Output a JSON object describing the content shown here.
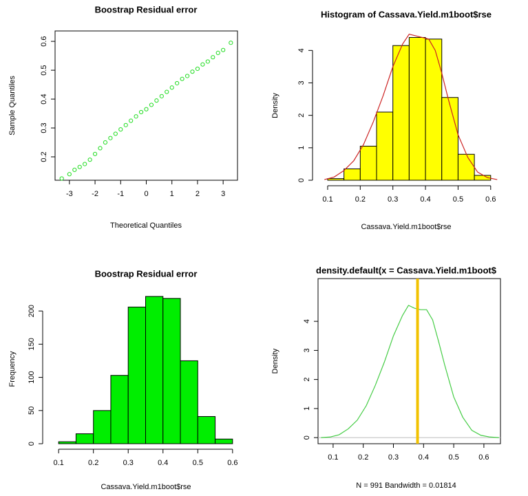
{
  "chart_data": [
    {
      "type": "scatter",
      "title": "Boostrap Residual error",
      "x_label": "Theoretical Quantiles",
      "y_label": "Sample Quantiles",
      "color": "#22dd22",
      "box": true,
      "x": [
        -3.3,
        -3.0,
        -2.8,
        -2.6,
        -2.4,
        -2.2,
        -2.0,
        -1.8,
        -1.6,
        -1.4,
        -1.2,
        -1.0,
        -0.8,
        -0.6,
        -0.4,
        -0.2,
        0,
        0.2,
        0.4,
        0.6,
        0.8,
        1.0,
        1.2,
        1.4,
        1.6,
        1.8,
        2.0,
        2.2,
        2.4,
        2.6,
        2.8,
        3.0,
        3.3
      ],
      "values": [
        0.125,
        0.14,
        0.155,
        0.165,
        0.175,
        0.19,
        0.21,
        0.23,
        0.25,
        0.265,
        0.28,
        0.295,
        0.31,
        0.325,
        0.34,
        0.355,
        0.365,
        0.38,
        0.395,
        0.41,
        0.425,
        0.44,
        0.455,
        0.47,
        0.48,
        0.495,
        0.505,
        0.52,
        0.53,
        0.545,
        0.56,
        0.57,
        0.595
      ],
      "xlim": [
        -3.56,
        3.56
      ],
      "ylim": [
        0.119,
        0.636
      ],
      "xticks": [
        -3,
        -2,
        -1,
        0,
        1,
        2,
        3
      ],
      "yticks": [
        0.2,
        0.3,
        0.4,
        0.5,
        0.6
      ]
    },
    {
      "type": "histogram",
      "title": "Histogram of Cassava.Yield.m1boot$rse",
      "x_label": "Cassava.Yield.m1boot$rse",
      "y_label": "Density",
      "color": "#ffff00",
      "box": false,
      "bins": [
        0.1,
        0.15,
        0.2,
        0.25,
        0.3,
        0.35,
        0.4,
        0.45,
        0.5,
        0.55,
        0.6
      ],
      "values": [
        0.05,
        0.35,
        1.05,
        2.1,
        4.15,
        4.4,
        4.35,
        2.55,
        0.8,
        0.15
      ],
      "line": {
        "color": "#cc2222",
        "x": [
          0.09,
          0.12,
          0.15,
          0.18,
          0.21,
          0.24,
          0.27,
          0.3,
          0.33,
          0.35,
          0.37,
          0.39,
          0.41,
          0.43,
          0.45,
          0.47,
          0.5,
          0.53,
          0.56,
          0.59,
          0.62
        ],
        "values": [
          0.02,
          0.1,
          0.3,
          0.6,
          1.1,
          1.8,
          2.6,
          3.5,
          4.2,
          4.5,
          4.45,
          4.4,
          4.35,
          4.0,
          3.3,
          2.5,
          1.4,
          0.7,
          0.25,
          0.08,
          0.02
        ]
      },
      "xlim": [
        0.0705,
        0.63
      ],
      "ylim": [
        0,
        4.6
      ],
      "xticks": [
        0.1,
        0.2,
        0.3,
        0.4,
        0.5,
        0.6
      ],
      "yticks": [
        0,
        1,
        2,
        3,
        4
      ]
    },
    {
      "type": "histogram",
      "title": "Boostrap Residual error",
      "x_label": "Cassava.Yield.m1boot$rse",
      "y_label": "Frequency",
      "color": "#00ee00",
      "box": false,
      "bins": [
        0.1,
        0.15,
        0.2,
        0.25,
        0.3,
        0.35,
        0.4,
        0.45,
        0.5,
        0.55,
        0.6
      ],
      "values": [
        3,
        15,
        50,
        103,
        206,
        222,
        219,
        125,
        41,
        7
      ],
      "xlim": [
        0.07,
        0.63
      ],
      "ylim": [
        0,
        225
      ],
      "xticks": [
        0.1,
        0.2,
        0.3,
        0.4,
        0.5,
        0.6
      ],
      "yticks": [
        0,
        50,
        100,
        150,
        200
      ]
    },
    {
      "type": "line",
      "title": "density.default(x = Cassava.Yield.m1boot$",
      "x_label": "N = 991   Bandwidth = 0.01814",
      "y_label": "Density",
      "color": "#44cc44",
      "box": true,
      "x": [
        0.06,
        0.09,
        0.12,
        0.15,
        0.18,
        0.21,
        0.24,
        0.27,
        0.3,
        0.33,
        0.35,
        0.37,
        0.39,
        0.41,
        0.43,
        0.45,
        0.47,
        0.5,
        0.53,
        0.56,
        0.59,
        0.62,
        0.65
      ],
      "values": [
        0,
        0.02,
        0.1,
        0.3,
        0.6,
        1.1,
        1.8,
        2.6,
        3.5,
        4.2,
        4.55,
        4.45,
        4.4,
        4.4,
        4.05,
        3.3,
        2.5,
        1.4,
        0.7,
        0.25,
        0.08,
        0.02,
        0
      ],
      "vline": 0.38,
      "vline_color": "#f2c200",
      "hline": 0,
      "hline_color": "#bebebe",
      "xlim": [
        0.05,
        0.655
      ],
      "ylim": [
        -0.21,
        5.47
      ],
      "xticks": [
        0.1,
        0.2,
        0.3,
        0.4,
        0.5,
        0.6
      ],
      "yticks": [
        0,
        1,
        2,
        3,
        4
      ]
    }
  ]
}
